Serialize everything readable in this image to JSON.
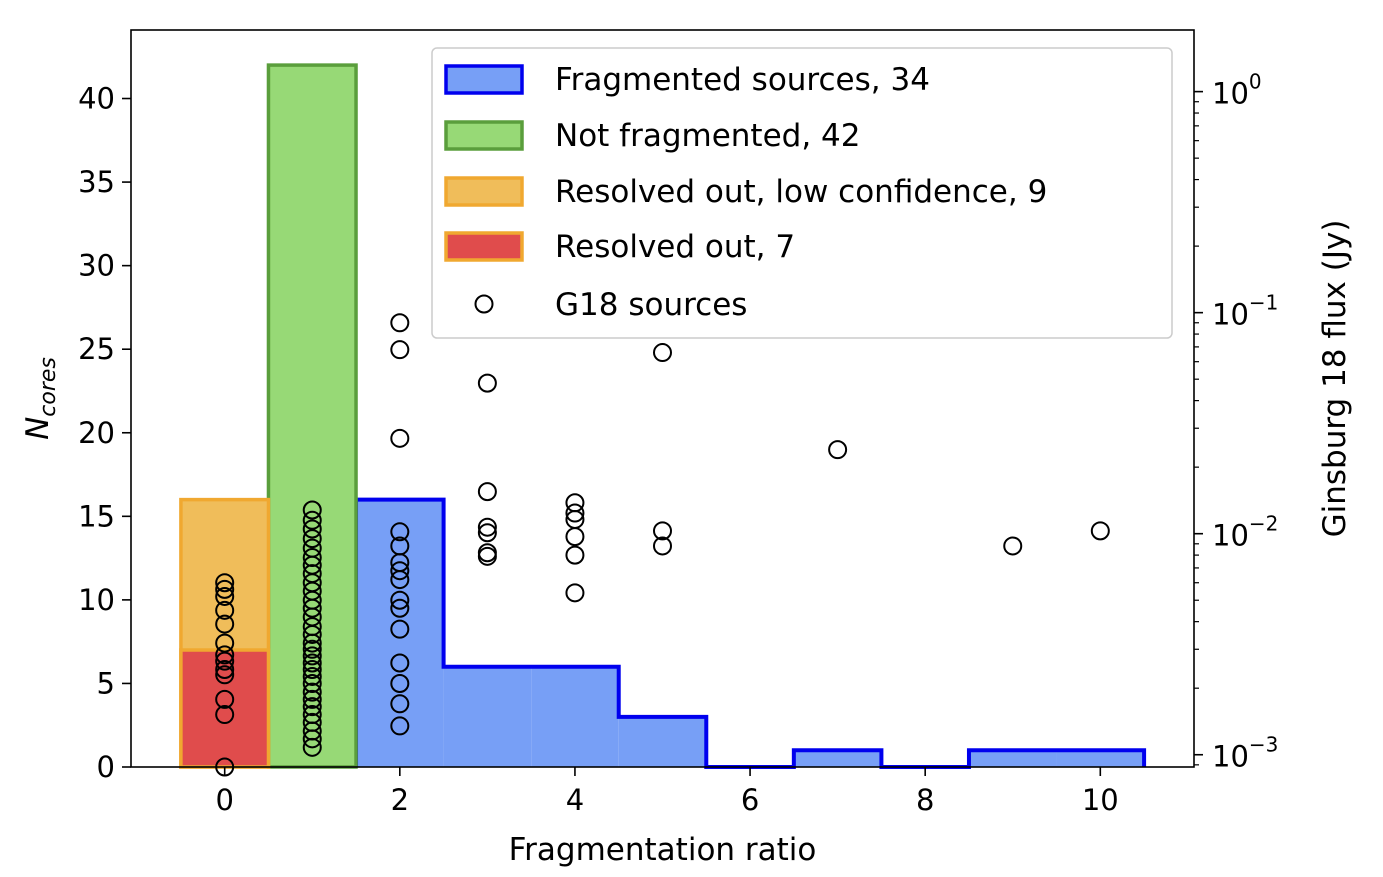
{
  "chart_data": {
    "type": "bar",
    "xlabel": "Fragmentation ratio",
    "ylabel_main": "N",
    "ylabel_sub": "cores",
    "ylabel_right": "Ginsburg 18 flux (Jy)",
    "xlim": [
      -1.07,
      11.07
    ],
    "ylim": [
      0,
      44.1
    ],
    "x_ticks": [
      0,
      2,
      4,
      6,
      8,
      10
    ],
    "y_ticks": [
      0,
      5,
      10,
      15,
      20,
      25,
      30,
      35,
      40
    ],
    "y2_scale": "log",
    "y2_lim": [
      0.00088,
      1.9
    ],
    "y2_ticks": [
      {
        "value": 0.001,
        "base": "10",
        "exp": "−3"
      },
      {
        "value": 0.01,
        "base": "10",
        "exp": "−2"
      },
      {
        "value": 0.1,
        "base": "10",
        "exp": "−1"
      },
      {
        "value": 1,
        "base": "10",
        "exp": "0"
      }
    ],
    "legend_position": "upper-right",
    "series": [
      {
        "name": "Fragmented sources, 34",
        "kind": "step",
        "fill": "#779ff6",
        "stroke": "#0000ee",
        "bins": [
          {
            "x0": 1.5,
            "x1": 2.5,
            "value": 16
          },
          {
            "x0": 2.5,
            "x1": 3.5,
            "value": 6
          },
          {
            "x0": 3.5,
            "x1": 4.5,
            "value": 6
          },
          {
            "x0": 4.5,
            "x1": 5.5,
            "value": 3
          },
          {
            "x0": 5.5,
            "x1": 6.5,
            "value": 0
          },
          {
            "x0": 6.5,
            "x1": 7.5,
            "value": 1
          },
          {
            "x0": 7.5,
            "x1": 8.5,
            "value": 0
          },
          {
            "x0": 8.5,
            "x1": 9.5,
            "value": 1
          },
          {
            "x0": 9.5,
            "x1": 10.5,
            "value": 1
          }
        ]
      },
      {
        "name": "Not fragmented, 42",
        "kind": "bar",
        "fill": "#97d976",
        "stroke": "#5a9e3c",
        "bins": [
          {
            "x0": 0.5,
            "x1": 1.5,
            "value": 42
          }
        ]
      },
      {
        "name": "Resolved out, low confidence, 9",
        "kind": "bar",
        "fill": "#f0bd5a",
        "stroke": "#f0a830",
        "bins": [
          {
            "x0": -0.5,
            "x1": 0.5,
            "value": 16
          }
        ]
      },
      {
        "name": "Resolved out, 7",
        "kind": "bar",
        "fill": "#e04c4c",
        "stroke": "#f0a830",
        "bins": [
          {
            "x0": -0.5,
            "x1": 0.5,
            "value": 7
          }
        ]
      },
      {
        "name": "G18 sources",
        "kind": "scatter",
        "stroke": "#000000",
        "axis": "right",
        "points": [
          [
            0,
            0.00088
          ],
          [
            0,
            0.00152
          ],
          [
            0,
            0.00178
          ],
          [
            0,
            0.0023
          ],
          [
            0,
            0.00243
          ],
          [
            0,
            0.00265
          ],
          [
            0,
            0.00283
          ],
          [
            0,
            0.0032
          ],
          [
            0,
            0.0039
          ],
          [
            0,
            0.0045
          ],
          [
            0,
            0.0052
          ],
          [
            0,
            0.0056
          ],
          [
            0,
            0.006
          ],
          [
            1,
            0.00108
          ],
          [
            1,
            0.00118
          ],
          [
            1,
            0.00128
          ],
          [
            1,
            0.0014
          ],
          [
            1,
            0.00152
          ],
          [
            1,
            0.00165
          ],
          [
            1,
            0.00178
          ],
          [
            1,
            0.00192
          ],
          [
            1,
            0.0021
          ],
          [
            1,
            0.00226
          ],
          [
            1,
            0.00243
          ],
          [
            1,
            0.0026
          ],
          [
            1,
            0.0028
          ],
          [
            1,
            0.003
          ],
          [
            1,
            0.0032
          ],
          [
            1,
            0.0035
          ],
          [
            1,
            0.0038
          ],
          [
            1,
            0.0042
          ],
          [
            1,
            0.0046
          ],
          [
            1,
            0.005
          ],
          [
            1,
            0.0055
          ],
          [
            1,
            0.006
          ],
          [
            1,
            0.0066
          ],
          [
            1,
            0.0072
          ],
          [
            1,
            0.0078
          ],
          [
            1,
            0.0086
          ],
          [
            1,
            0.0095
          ],
          [
            1,
            0.0105
          ],
          [
            1,
            0.0115
          ],
          [
            1,
            0.0128
          ],
          [
            2,
            0.00135
          ],
          [
            2,
            0.0017
          ],
          [
            2,
            0.0021
          ],
          [
            2,
            0.0026
          ],
          [
            2,
            0.0037
          ],
          [
            2,
            0.0046
          ],
          [
            2,
            0.005
          ],
          [
            2,
            0.0062
          ],
          [
            2,
            0.0068
          ],
          [
            2,
            0.0074
          ],
          [
            2,
            0.0088
          ],
          [
            2,
            0.0102
          ],
          [
            2,
            0.027
          ],
          [
            2,
            0.068
          ],
          [
            2,
            0.09
          ],
          [
            3,
            0.0079
          ],
          [
            3,
            0.0082
          ],
          [
            3,
            0.0101
          ],
          [
            3,
            0.0107
          ],
          [
            3,
            0.0155
          ],
          [
            3,
            0.048
          ],
          [
            4,
            0.0054
          ],
          [
            4,
            0.008
          ],
          [
            4,
            0.0097
          ],
          [
            4,
            0.0116
          ],
          [
            4,
            0.0124
          ],
          [
            4,
            0.0138
          ],
          [
            5,
            0.0088
          ],
          [
            5,
            0.0103
          ],
          [
            5,
            0.066
          ],
          [
            7,
            0.024
          ],
          [
            9,
            0.0088
          ],
          [
            10,
            0.0103
          ]
        ]
      }
    ]
  }
}
